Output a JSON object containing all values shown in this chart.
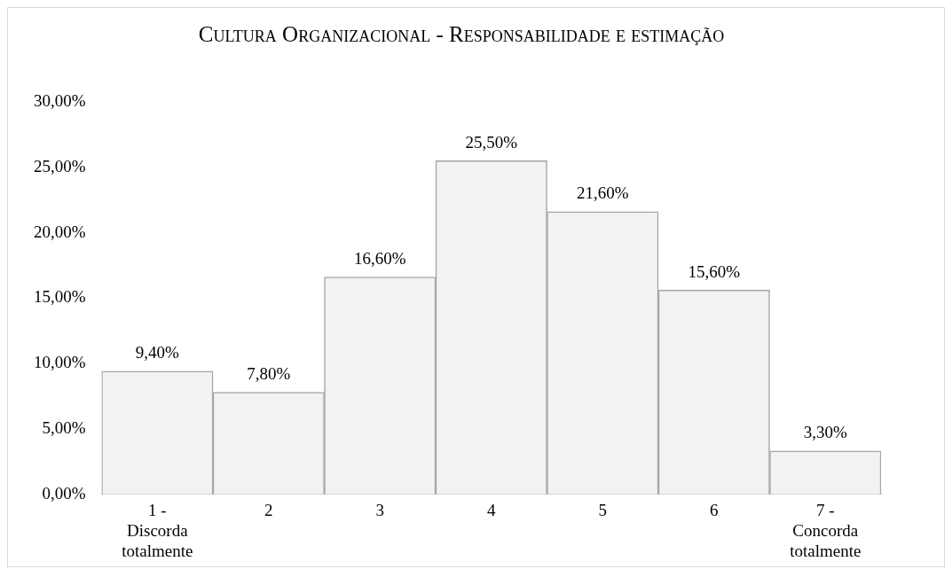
{
  "chart_data": {
    "type": "bar",
    "title": "Cultura Organizacional - Responsabilidade e estimação",
    "categories": [
      "1 - Discorda totalmente",
      "2",
      "3",
      "4",
      "5",
      "6",
      "7 - Concorda totalmente"
    ],
    "values": [
      9.4,
      7.8,
      16.6,
      25.5,
      21.6,
      15.6,
      3.3
    ],
    "color": "#f2f2f2",
    "ylim": [
      0,
      30
    ],
    "yticks": [
      {
        "value": 0,
        "label": "0,00%"
      },
      {
        "value": 5,
        "label": "5,00%"
      },
      {
        "value": 10,
        "label": "10,00%"
      },
      {
        "value": 15,
        "label": "15,00%"
      },
      {
        "value": 20,
        "label": "20,00%"
      },
      {
        "value": 25,
        "label": "25,00%"
      },
      {
        "value": 30,
        "label": "30,00%"
      }
    ],
    "value_labels": [
      "9,40%",
      "7,80%",
      "16,60%",
      "25,50%",
      "21,60%",
      "15,60%",
      "3,30%"
    ],
    "grid": false,
    "legend": false
  }
}
